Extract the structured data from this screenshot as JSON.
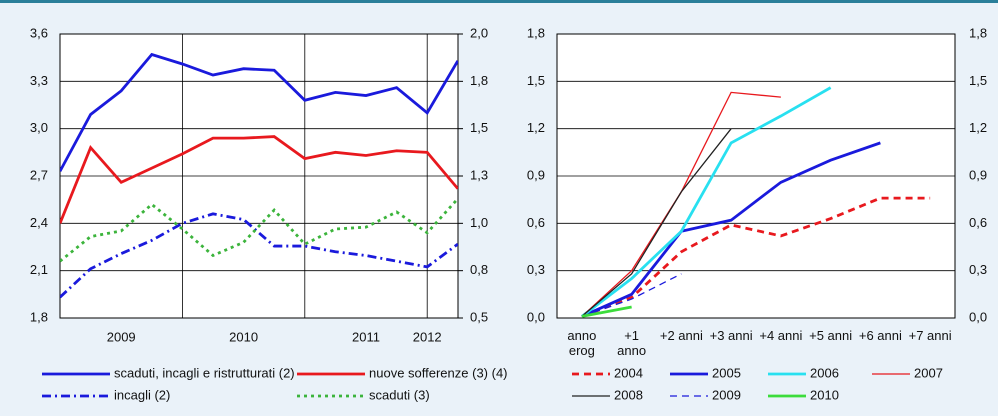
{
  "chart_data": [
    {
      "type": "line",
      "categories": [
        null,
        null,
        "2009",
        null,
        null,
        null,
        "2010",
        null,
        null,
        null,
        "2011",
        null,
        "2012",
        null
      ],
      "ylim": [
        1.8,
        3.6
      ],
      "yticks": [
        {
          "value": 1.8,
          "label": "1,8"
        },
        {
          "value": 2.1,
          "label": "2,1"
        },
        {
          "value": 2.4,
          "label": "2,4"
        },
        {
          "value": 2.7,
          "label": "2,7"
        },
        {
          "value": 3.0,
          "label": "3,0"
        },
        {
          "value": 3.3,
          "label": "3,3"
        },
        {
          "value": 3.6,
          "label": "3,6"
        }
      ],
      "y2lim": [
        0.5,
        2.0
      ],
      "y2ticks": [
        {
          "value": 0.5,
          "label": "0,5"
        },
        {
          "value": 0.75,
          "label": "0,8"
        },
        {
          "value": 1.0,
          "label": "1,0"
        },
        {
          "value": 1.25,
          "label": "1,3"
        },
        {
          "value": 1.5,
          "label": "1,5"
        },
        {
          "value": 1.75,
          "label": "1,8"
        },
        {
          "value": 2.0,
          "label": "2,0"
        }
      ],
      "grid": true,
      "series": [
        {
          "name": "scaduti, incagli e ristrutturati (2)",
          "color": "#1a1adc",
          "linestyle": "solid",
          "linewidth": "thick",
          "values": [
            2.73,
            3.09,
            3.24,
            3.47,
            3.41,
            3.34,
            3.38,
            3.37,
            3.18,
            3.23,
            3.21,
            3.26,
            3.1,
            3.43
          ]
        },
        {
          "name": "nuove sofferenze (3) (4)",
          "color": "#e8191e",
          "linestyle": "solid",
          "linewidth": "thick",
          "values": [
            2.4,
            2.88,
            2.66,
            2.75,
            2.84,
            2.94,
            2.94,
            2.95,
            2.81,
            2.85,
            2.83,
            2.86,
            2.85,
            2.62
          ]
        },
        {
          "name": "incagli (2)",
          "color": "#1a1adc",
          "linestyle": "dashdot",
          "linewidth": "thick",
          "axis": "y2",
          "values": [
            0.61,
            0.76,
            0.84,
            0.91,
            1.0,
            1.05,
            1.02,
            0.88,
            0.88,
            0.85,
            0.83,
            0.8,
            0.77,
            0.89
          ]
        },
        {
          "name": "scaduti (3)",
          "color": "#3cb43c",
          "linestyle": "dotted",
          "linewidth": "thick",
          "axis": "y2",
          "values": [
            0.8,
            0.93,
            0.96,
            1.1,
            0.97,
            0.83,
            0.9,
            1.07,
            0.89,
            0.97,
            0.98,
            1.06,
            0.95,
            1.13
          ]
        }
      ]
    },
    {
      "type": "line",
      "categories": [
        "anno erog",
        "+1 anno",
        "+2 anni",
        "+3 anni",
        "+4 anni",
        "+5 anni",
        "+6 anni",
        "+7 anni"
      ],
      "ylim": [
        0,
        1.8
      ],
      "yticks": [
        {
          "value": 0,
          "label": "0,0"
        },
        {
          "value": 0.3,
          "label": "0,3"
        },
        {
          "value": 0.6,
          "label": "0,6"
        },
        {
          "value": 0.9,
          "label": "0,9"
        },
        {
          "value": 1.2,
          "label": "1,2"
        },
        {
          "value": 1.5,
          "label": "1,5"
        },
        {
          "value": 1.8,
          "label": "1,8"
        }
      ],
      "grid": true,
      "series": [
        {
          "name": "2004",
          "color": "#e8191e",
          "linestyle": "dashed",
          "linewidth": "thick",
          "values": [
            0.01,
            0.13,
            0.42,
            0.59,
            0.52,
            0.63,
            0.76,
            0.76
          ]
        },
        {
          "name": "2005",
          "color": "#1a1adc",
          "linestyle": "solid",
          "linewidth": "thick",
          "values": [
            0.01,
            0.15,
            0.55,
            0.62,
            0.86,
            1.0,
            1.11,
            null
          ]
        },
        {
          "name": "2006",
          "color": "#28e0f0",
          "linestyle": "solid",
          "linewidth": "thick",
          "values": [
            0.01,
            0.25,
            0.55,
            1.11,
            1.28,
            1.46,
            null,
            null
          ]
        },
        {
          "name": "2007",
          "color": "#e8191e",
          "linestyle": "solid",
          "linewidth": "thin",
          "values": [
            0.01,
            0.3,
            0.8,
            1.43,
            1.4,
            null,
            null,
            null
          ]
        },
        {
          "name": "2008",
          "color": "#222222",
          "linestyle": "solid",
          "linewidth": "thin",
          "values": [
            0.01,
            0.28,
            0.8,
            1.2,
            null,
            null,
            null,
            null
          ]
        },
        {
          "name": "2009",
          "color": "#1a1adc",
          "linestyle": "dashed",
          "linewidth": "thin",
          "values": [
            0.01,
            0.12,
            0.28,
            null,
            null,
            null,
            null,
            null
          ]
        },
        {
          "name": "2010",
          "color": "#3cdc3c",
          "linestyle": "solid",
          "linewidth": "thick",
          "values": [
            0.01,
            0.07,
            null,
            null,
            null,
            null,
            null,
            null
          ]
        }
      ]
    }
  ]
}
